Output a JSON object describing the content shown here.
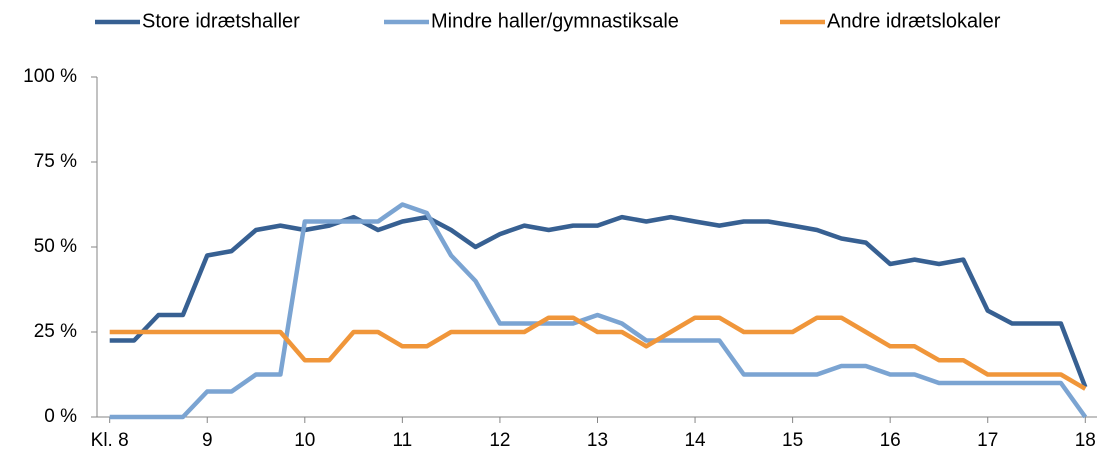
{
  "chart_data": {
    "type": "line",
    "x": [
      8,
      8.25,
      8.5,
      8.75,
      9,
      9.25,
      9.5,
      9.75,
      10,
      10.25,
      10.5,
      10.75,
      11,
      11.25,
      11.5,
      11.75,
      12,
      12.25,
      12.5,
      12.75,
      13,
      13.25,
      13.5,
      13.75,
      14,
      14.25,
      14.5,
      14.75,
      15,
      15.25,
      15.5,
      15.75,
      16,
      16.25,
      16.5,
      16.75,
      17,
      17.25,
      17.5,
      17.75,
      18
    ],
    "series": [
      {
        "name": "Store idrætshaller",
        "color": "#376092",
        "values": [
          22.5,
          22.5,
          30,
          30,
          47.5,
          48.8,
          55,
          56.3,
          55,
          56.3,
          58.8,
          55,
          57.5,
          58.8,
          55,
          50,
          53.8,
          56.3,
          55,
          56.3,
          56.3,
          58.8,
          57.5,
          58.8,
          57.5,
          56.3,
          57.5,
          57.5,
          56.3,
          55,
          52.5,
          51.3,
          45,
          46.3,
          45,
          46.3,
          31.3,
          27.5,
          27.5,
          27.5,
          8.8
        ]
      },
      {
        "name": "Mindre haller/gymnastiksale",
        "color": "#7ba4d2",
        "values": [
          0,
          0,
          0,
          0,
          7.5,
          7.5,
          12.5,
          12.5,
          57.5,
          57.5,
          57.5,
          57.5,
          62.5,
          60,
          47.5,
          40,
          27.5,
          27.5,
          27.5,
          27.5,
          30,
          27.5,
          22.5,
          22.5,
          22.5,
          22.5,
          12.5,
          12.5,
          12.5,
          12.5,
          15,
          15,
          12.5,
          12.5,
          10,
          10,
          10,
          10,
          10,
          10,
          0
        ]
      },
      {
        "name": "Andre idrætslokaler",
        "color": "#f0963a",
        "values": [
          25,
          25,
          25,
          25,
          25,
          25,
          25,
          25,
          16.7,
          16.7,
          25,
          25,
          20.8,
          20.8,
          25,
          25,
          25,
          25,
          29.2,
          29.2,
          25,
          25,
          20.8,
          25,
          29.2,
          29.2,
          25,
          25,
          25,
          29.2,
          29.2,
          25,
          20.8,
          20.8,
          16.7,
          16.7,
          12.5,
          12.5,
          12.5,
          12.5,
          8.3
        ]
      }
    ],
    "xlim": [
      7.87,
      18.12
    ],
    "xticks": [
      {
        "value": 8,
        "label": "Kl. 8"
      },
      9,
      10,
      11,
      12,
      13,
      14,
      15,
      16,
      17,
      18
    ],
    "ylim": [
      0,
      100
    ],
    "yticks": [
      {
        "value": 0,
        "label": "0 %"
      },
      {
        "value": 25,
        "label": "25 %"
      },
      {
        "value": 50,
        "label": "50 %"
      },
      {
        "value": 75,
        "label": "75 %"
      },
      {
        "value": 100,
        "label": "100 %"
      }
    ],
    "grid": false,
    "legend": "top"
  }
}
